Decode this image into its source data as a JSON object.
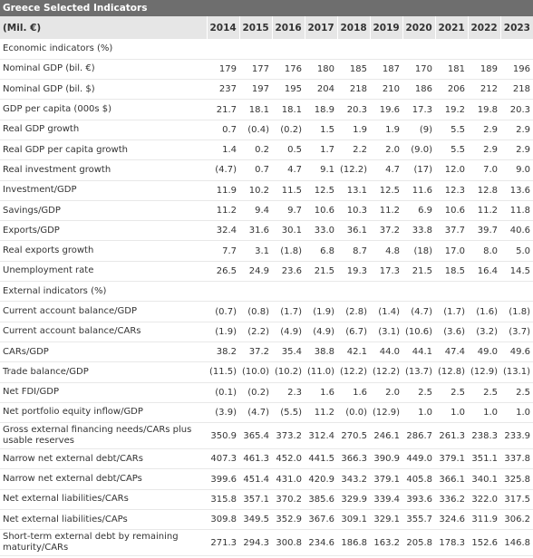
{
  "title": "Greece Selected Indicators",
  "header": {
    "unit_label": "(Mil. €)",
    "years": [
      "2014",
      "2015",
      "2016",
      "2017",
      "2018",
      "2019",
      "2020",
      "2021",
      "2022",
      "2023"
    ]
  },
  "rows": [
    {
      "type": "section",
      "label": "Economic indicators (%)"
    },
    {
      "type": "data",
      "label": "Nominal GDP (bil. €)",
      "values": [
        "179",
        "177",
        "176",
        "180",
        "185",
        "187",
        "170",
        "181",
        "189",
        "196"
      ]
    },
    {
      "type": "data",
      "label": "Nominal GDP (bil. $)",
      "values": [
        "237",
        "197",
        "195",
        "204",
        "218",
        "210",
        "186",
        "206",
        "212",
        "218"
      ]
    },
    {
      "type": "data",
      "label": "GDP per capita (000s $)",
      "values": [
        "21.7",
        "18.1",
        "18.1",
        "18.9",
        "20.3",
        "19.6",
        "17.3",
        "19.2",
        "19.8",
        "20.3"
      ]
    },
    {
      "type": "data",
      "label": "Real GDP growth",
      "values": [
        "0.7",
        "(0.4)",
        "(0.2)",
        "1.5",
        "1.9",
        "1.9",
        "(9)",
        "5.5",
        "2.9",
        "2.9"
      ]
    },
    {
      "type": "data",
      "label": "Real GDP per capita growth",
      "values": [
        "1.4",
        "0.2",
        "0.5",
        "1.7",
        "2.2",
        "2.0",
        "(9.0)",
        "5.5",
        "2.9",
        "2.9"
      ]
    },
    {
      "type": "data",
      "label": "Real investment growth",
      "values": [
        "(4.7)",
        "0.7",
        "4.7",
        "9.1",
        "(12.2)",
        "4.7",
        "(17)",
        "12.0",
        "7.0",
        "9.0"
      ]
    },
    {
      "type": "data",
      "label": "Investment/GDP",
      "values": [
        "11.9",
        "10.2",
        "11.5",
        "12.5",
        "13.1",
        "12.5",
        "11.6",
        "12.3",
        "12.8",
        "13.6"
      ]
    },
    {
      "type": "data",
      "label": "Savings/GDP",
      "values": [
        "11.2",
        "9.4",
        "9.7",
        "10.6",
        "10.3",
        "11.2",
        "6.9",
        "10.6",
        "11.2",
        "11.8"
      ]
    },
    {
      "type": "data",
      "label": "Exports/GDP",
      "values": [
        "32.4",
        "31.6",
        "30.1",
        "33.0",
        "36.1",
        "37.2",
        "33.8",
        "37.7",
        "39.7",
        "40.6"
      ]
    },
    {
      "type": "data",
      "label": "Real exports growth",
      "values": [
        "7.7",
        "3.1",
        "(1.8)",
        "6.8",
        "8.7",
        "4.8",
        "(18)",
        "17.0",
        "8.0",
        "5.0"
      ]
    },
    {
      "type": "data",
      "label": "Unemployment rate",
      "values": [
        "26.5",
        "24.9",
        "23.6",
        "21.5",
        "19.3",
        "17.3",
        "21.5",
        "18.5",
        "16.4",
        "14.5"
      ]
    },
    {
      "type": "section",
      "label": "External indicators (%)"
    },
    {
      "type": "data",
      "label": "Current account balance/GDP",
      "values": [
        "(0.7)",
        "(0.8)",
        "(1.7)",
        "(1.9)",
        "(2.8)",
        "(1.4)",
        "(4.7)",
        "(1.7)",
        "(1.6)",
        "(1.8)"
      ]
    },
    {
      "type": "data",
      "label": "Current account balance/CARs",
      "values": [
        "(1.9)",
        "(2.2)",
        "(4.9)",
        "(4.9)",
        "(6.7)",
        "(3.1)",
        "(10.6)",
        "(3.6)",
        "(3.2)",
        "(3.7)"
      ]
    },
    {
      "type": "data",
      "label": "CARs/GDP",
      "values": [
        "38.2",
        "37.2",
        "35.4",
        "38.8",
        "42.1",
        "44.0",
        "44.1",
        "47.4",
        "49.0",
        "49.6"
      ]
    },
    {
      "type": "data",
      "label": "Trade balance/GDP",
      "values": [
        "(11.5)",
        "(10.0)",
        "(10.2)",
        "(11.0)",
        "(12.2)",
        "(12.2)",
        "(13.7)",
        "(12.8)",
        "(12.9)",
        "(13.1)"
      ]
    },
    {
      "type": "data",
      "label": "Net FDI/GDP",
      "values": [
        "(0.1)",
        "(0.2)",
        "2.3",
        "1.6",
        "1.6",
        "2.0",
        "2.5",
        "2.5",
        "2.5",
        "2.5"
      ]
    },
    {
      "type": "data",
      "label": "Net portfolio equity inflow/GDP",
      "values": [
        "(3.9)",
        "(4.7)",
        "(5.5)",
        "11.2",
        "(0.0)",
        "(12.9)",
        "1.0",
        "1.0",
        "1.0",
        "1.0"
      ]
    },
    {
      "type": "data",
      "tall": true,
      "label": "Gross external financing needs/CARs plus usable reserves",
      "values": [
        "350.9",
        "365.4",
        "373.2",
        "312.4",
        "270.5",
        "246.1",
        "286.7",
        "261.3",
        "238.3",
        "233.9"
      ]
    },
    {
      "type": "data",
      "label": "Narrow net external debt/CARs",
      "values": [
        "407.3",
        "461.3",
        "452.0",
        "441.5",
        "366.3",
        "390.9",
        "449.0",
        "379.1",
        "351.1",
        "337.8"
      ]
    },
    {
      "type": "data",
      "label": "Narrow net external debt/CAPs",
      "values": [
        "399.6",
        "451.4",
        "431.0",
        "420.9",
        "343.2",
        "379.1",
        "405.8",
        "366.1",
        "340.1",
        "325.8"
      ]
    },
    {
      "type": "data",
      "label": "Net external liabilities/CARs",
      "values": [
        "315.8",
        "357.1",
        "370.2",
        "385.6",
        "329.9",
        "339.4",
        "393.6",
        "336.2",
        "322.0",
        "317.5"
      ]
    },
    {
      "type": "data",
      "label": "Net external liabilities/CAPs",
      "values": [
        "309.8",
        "349.5",
        "352.9",
        "367.6",
        "309.1",
        "329.1",
        "355.7",
        "324.6",
        "311.9",
        "306.2"
      ]
    },
    {
      "type": "data",
      "tall": true,
      "label": "Short-term external debt by remaining maturity/CARs",
      "values": [
        "271.3",
        "294.3",
        "300.8",
        "234.6",
        "186.8",
        "163.2",
        "205.8",
        "178.3",
        "152.6",
        "146.8"
      ]
    }
  ]
}
